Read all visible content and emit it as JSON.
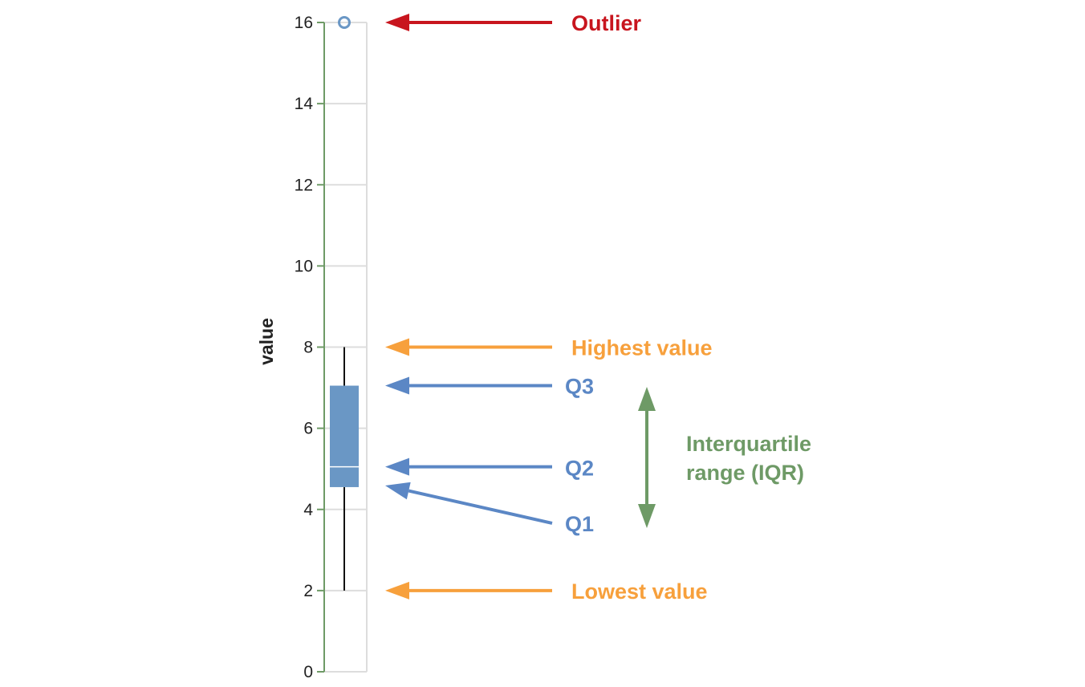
{
  "chart_data": {
    "type": "box",
    "ylabel": "value",
    "ylim": [
      0,
      16
    ],
    "yticks": [
      0,
      2,
      4,
      6,
      8,
      10,
      12,
      14,
      16
    ],
    "grid": true,
    "box": {
      "min": 2,
      "q1": 4.55,
      "median": 5.05,
      "q3": 7.05,
      "max": 8,
      "outliers": [
        16
      ]
    },
    "annotations": [
      {
        "id": "outlier",
        "label": "Outlier",
        "target": 16,
        "color": "#c8151e"
      },
      {
        "id": "highest",
        "label": "Highest value",
        "target": 8,
        "color": "#f7a03c"
      },
      {
        "id": "q3",
        "label": "Q3",
        "target": 7.05,
        "color": "#5b87c5"
      },
      {
        "id": "q2",
        "label": "Q2",
        "target": 5.05,
        "color": "#5b87c5"
      },
      {
        "id": "q1",
        "label": "Q1",
        "target": 4.55,
        "color": "#5b87c5"
      },
      {
        "id": "lowest",
        "label": "Lowest value",
        "target": 2,
        "color": "#f7a03c"
      }
    ],
    "iqr_label": [
      "Interquartile",
      "range (IQR)"
    ],
    "colors": {
      "box": "#6a97c5",
      "axis": "#6e9a66",
      "grid": "#dddddd",
      "iqr": "#6e9a66"
    }
  }
}
